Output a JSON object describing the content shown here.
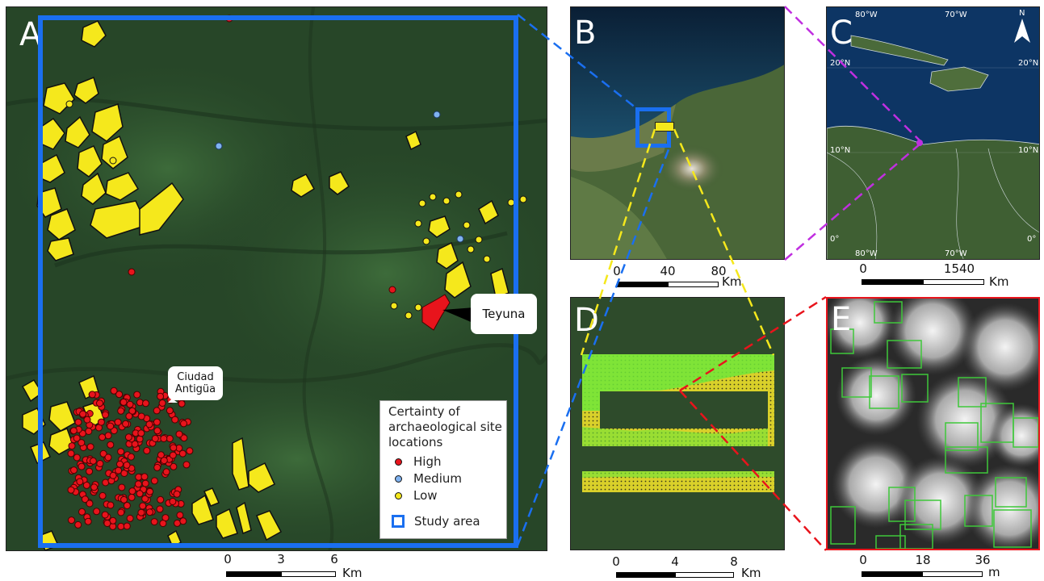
{
  "panels": {
    "a": {
      "label": "A"
    },
    "b": {
      "label": "B"
    },
    "c": {
      "label": "C"
    },
    "d": {
      "label": "D"
    },
    "e": {
      "label": "E"
    }
  },
  "callouts": {
    "teyuna": "Teyuna",
    "ciudad_line1": "Ciudad",
    "ciudad_line2": "Antigüa"
  },
  "legend": {
    "title": "Certainty of archaeological site locations",
    "high": "High",
    "medium": "Medium",
    "low": "Low",
    "study": "Study area"
  },
  "scalebars": {
    "a": {
      "ticks": [
        "0",
        "3",
        "6"
      ],
      "unit": "Km"
    },
    "b": {
      "ticks": [
        "0",
        "40",
        "80"
      ],
      "unit": "Km"
    },
    "c": {
      "ticks": [
        "0",
        "1540"
      ],
      "unit": "Km"
    },
    "d": {
      "ticks": [
        "0",
        "4",
        "8"
      ],
      "unit": "Km"
    },
    "e": {
      "ticks": [
        "0",
        "18",
        "36"
      ],
      "unit": "m"
    }
  },
  "graticule": {
    "north": "N",
    "lon_80w_top": "80°W",
    "lon_70w_top": "70°W",
    "lat_20n_left": "20°N",
    "lat_20n_right": "20°N",
    "lat_10n_left": "10°N",
    "lat_10n_right": "10°N",
    "lat_0_left": "0°",
    "lat_0_right": "0°",
    "lon_80w_bottom": "80°W",
    "lon_70w_bottom": "70°W"
  },
  "colors": {
    "high": "#e8141c",
    "medium": "#7fb2f0",
    "low": "#f5e81c",
    "study_area": "#1a6ff0",
    "link_b": "#1a6ff0",
    "link_c": "#c02fe0",
    "link_d": "#f5e81c",
    "link_e": "#e8141c",
    "detection_box": "#3ec83a"
  }
}
